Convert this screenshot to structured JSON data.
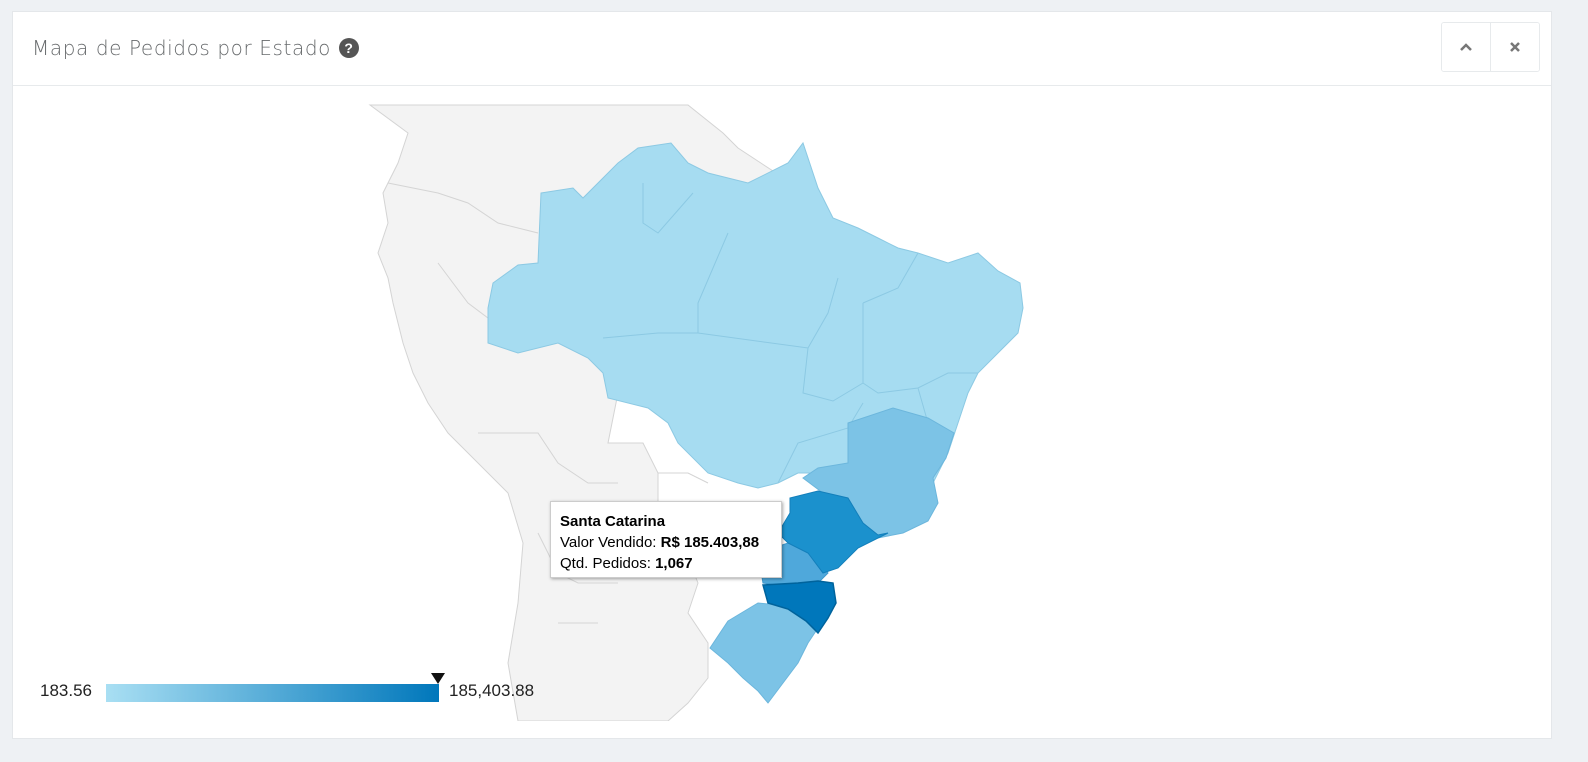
{
  "panel": {
    "title": "Mapa de Pedidos por Estado",
    "help_icon": "question-circle-icon",
    "collapse_icon": "chevron-up-icon",
    "close_icon": "close-icon"
  },
  "tooltip": {
    "state": "Santa Catarina",
    "value_label": "Valor Vendido:",
    "value": "R$ 185.403,88",
    "orders_label": "Qtd. Pedidos:",
    "orders": "1,067"
  },
  "legend": {
    "min": "183.56",
    "max": "185,403.88",
    "color_min": "#a9dff3",
    "color_max": "#0077bb"
  },
  "colors": {
    "base_state": "#a6dcf1",
    "mid_state": "#7cc3e6",
    "sp_state": "#1b91cd",
    "pr_state": "#4fa8db",
    "sc_state": "#0077bb",
    "rest_of_world": "#f3f3f3"
  }
}
